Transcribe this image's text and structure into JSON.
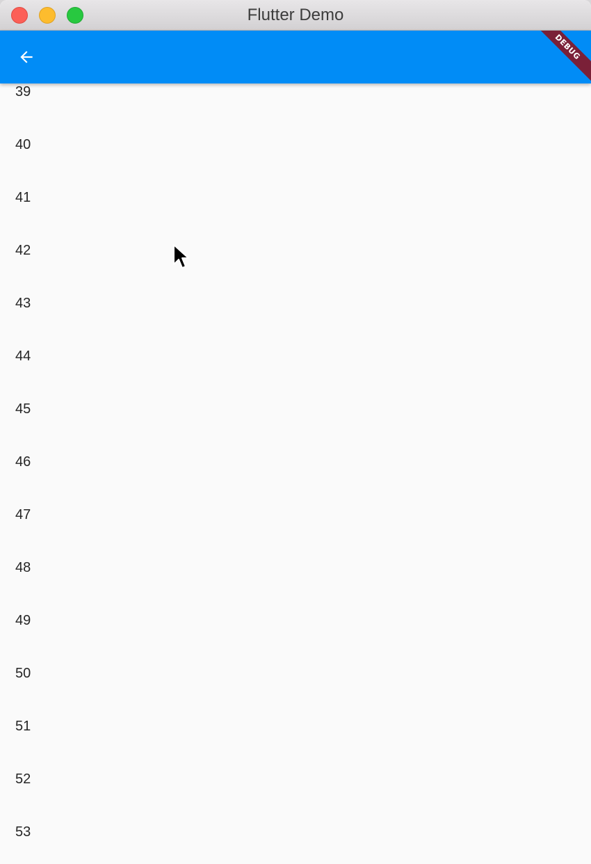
{
  "window": {
    "title": "Flutter Demo"
  },
  "appbar": {
    "back_icon": "arrow-back-icon",
    "color": "#018cf6",
    "debug_label": "DEBUG"
  },
  "list": {
    "items": [
      "39",
      "40",
      "41",
      "42",
      "43",
      "44",
      "45",
      "46",
      "47",
      "48",
      "49",
      "50",
      "51",
      "52",
      "53"
    ]
  }
}
